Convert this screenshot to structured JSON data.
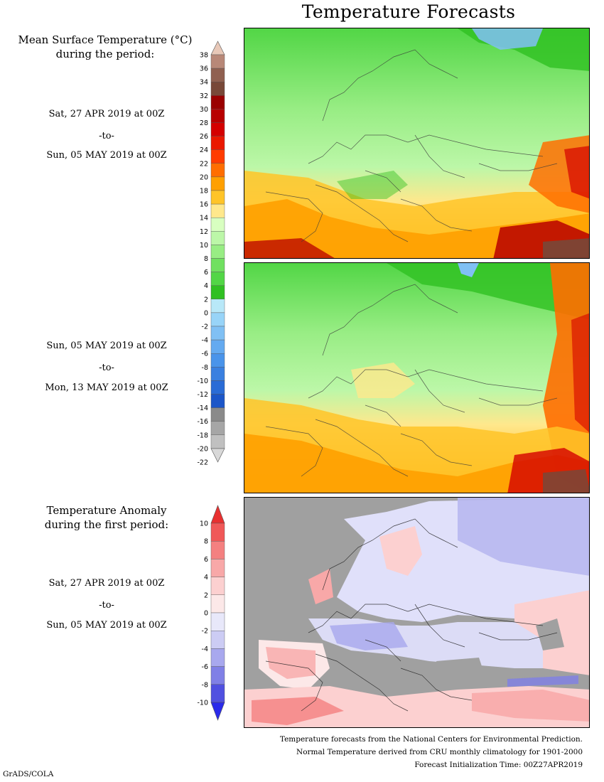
{
  "title": "Temperature Forecasts",
  "mean_temp": {
    "title_line1": "Mean Surface Temperature (°C)",
    "title_line2": "during the period:",
    "period1": {
      "start": "Sat, 27 APR 2019 at 00Z",
      "to": "-to-",
      "end": "Sun, 05 MAY 2019 at 00Z"
    },
    "period2": {
      "start": "Sun, 05 MAY 2019 at 00Z",
      "to": "-to-",
      "end": "Mon, 13 MAY 2019 at 00Z"
    },
    "colorbar": {
      "ticks": [
        "38",
        "36",
        "34",
        "32",
        "30",
        "28",
        "26",
        "24",
        "22",
        "20",
        "18",
        "16",
        "14",
        "12",
        "10",
        "8",
        "6",
        "4",
        "2",
        "0",
        "-2",
        "-4",
        "-6",
        "-8",
        "-10",
        "-12",
        "-14",
        "-16",
        "-18",
        "-20",
        "-22"
      ],
      "colors": [
        "#e8c8b8",
        "#b88878",
        "#906050",
        "#784838",
        "#9a0000",
        "#b80000",
        "#d40000",
        "#ea1800",
        "#ff3c00",
        "#ff6e00",
        "#ffa000",
        "#ffc428",
        "#ffe88c",
        "#d8ffc0",
        "#bcf7a8",
        "#98ed84",
        "#70e060",
        "#52d646",
        "#30c022",
        "#b8e8f8",
        "#98d4f8",
        "#80c0f4",
        "#64aaf0",
        "#4a94ea",
        "#3a80e0",
        "#2a6cd6",
        "#1c56c8",
        "#8a8a8a",
        "#a6a6a6",
        "#c0c0c0",
        "#d8d8d8"
      ]
    }
  },
  "anomaly": {
    "title_line1": "Temperature Anomaly",
    "title_line2": "during the first period:",
    "period": {
      "start": "Sat, 27 APR 2019 at 00Z",
      "to": "-to-",
      "end": "Sun, 05 MAY 2019 at 00Z"
    },
    "colorbar": {
      "ticks": [
        "10",
        "8",
        "6",
        "4",
        "2",
        "0",
        "-2",
        "-4",
        "-6",
        "-8",
        "-10"
      ],
      "colors": [
        "#e83030",
        "#f05858",
        "#f48080",
        "#f8a8a8",
        "#fcd0d0",
        "#fce8e8",
        "#e8e8fa",
        "#ccccf4",
        "#a8a8ee",
        "#8080e6",
        "#5050e0",
        "#2a2aea"
      ]
    }
  },
  "footer": {
    "line1": "Temperature forecasts from the National Centers for Environmental Prediction.",
    "line2": "Normal Temperature derived from CRU monthly climatology for 1901-2000",
    "line3": "Forecast Initialization Time: 00Z27APR2019"
  },
  "credit": "GrADS/COLA"
}
